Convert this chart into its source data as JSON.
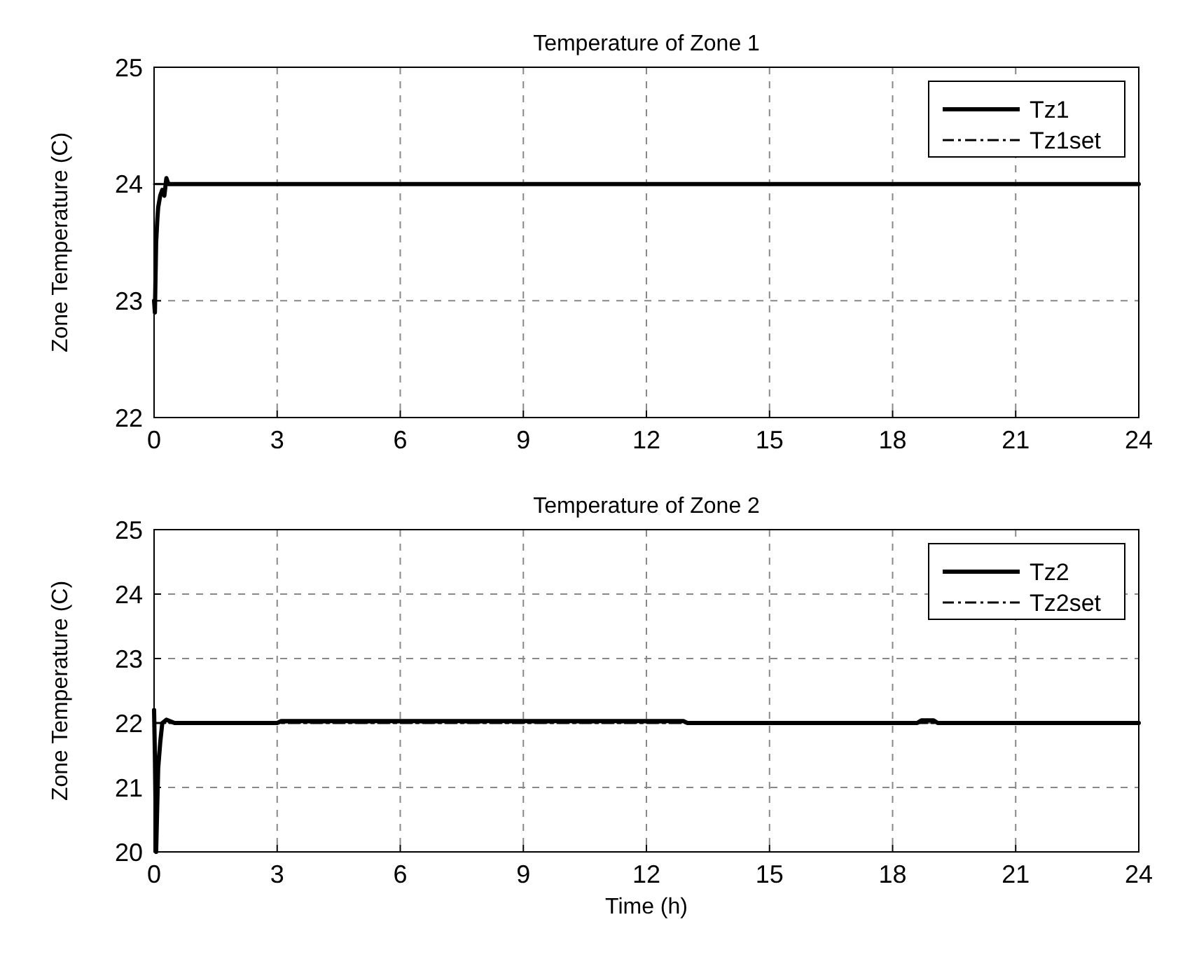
{
  "chart_data": [
    {
      "type": "line",
      "title": "Temperature of Zone 1",
      "ylabel": "Zone Temperature (C)",
      "xlim": [
        0,
        24
      ],
      "xticks": [
        0,
        3,
        6,
        9,
        12,
        15,
        18,
        21,
        24
      ],
      "ylim": [
        22,
        25
      ],
      "yticks": [
        22,
        23,
        24,
        25
      ],
      "grid": true,
      "legend": "top right",
      "series": [
        {
          "name": "Tz1",
          "color": "#000000",
          "line_style": "solid",
          "x": [
            0,
            0.02,
            0.05,
            0.08,
            0.1,
            0.15,
            0.2,
            0.25,
            0.3,
            0.35,
            0.5,
            3,
            6,
            12,
            18,
            24
          ],
          "values": [
            23.0,
            22.9,
            23.5,
            23.7,
            23.8,
            23.9,
            23.95,
            23.9,
            24.05,
            24.0,
            24.0,
            24.0,
            24.0,
            24.0,
            24.0,
            24.0
          ]
        },
        {
          "name": "Tz1set",
          "color": "#000000",
          "line_style": "dashdot",
          "x": [
            0,
            24
          ],
          "values": [
            24,
            24
          ]
        }
      ]
    },
    {
      "type": "line",
      "title": "Temperature of Zone 2",
      "ylabel": "Zone Temperature (C)",
      "xlabel": "Time (h)",
      "xlim": [
        0,
        24
      ],
      "xticks": [
        0,
        3,
        6,
        9,
        12,
        15,
        18,
        21,
        24
      ],
      "ylim": [
        20,
        25
      ],
      "yticks": [
        20,
        21,
        22,
        23,
        24,
        25
      ],
      "grid": true,
      "legend": "top right",
      "series": [
        {
          "name": "Tz2",
          "color": "#000000",
          "line_style": "solid",
          "x": [
            0,
            0.02,
            0.05,
            0.08,
            0.1,
            0.15,
            0.2,
            0.3,
            0.5,
            3,
            3.1,
            6,
            9,
            12.9,
            13,
            18.6,
            18.7,
            19,
            19.1,
            24
          ],
          "values": [
            22.2,
            21.5,
            20.0,
            20.8,
            21.3,
            21.7,
            22.0,
            22.05,
            22.0,
            22.0,
            22.03,
            22.03,
            22.03,
            22.03,
            22.0,
            22.0,
            22.04,
            22.04,
            22.0,
            22.0
          ]
        },
        {
          "name": "Tz2set",
          "color": "#000000",
          "line_style": "dashdot",
          "x": [
            0,
            24
          ],
          "values": [
            22,
            22
          ]
        }
      ]
    }
  ]
}
